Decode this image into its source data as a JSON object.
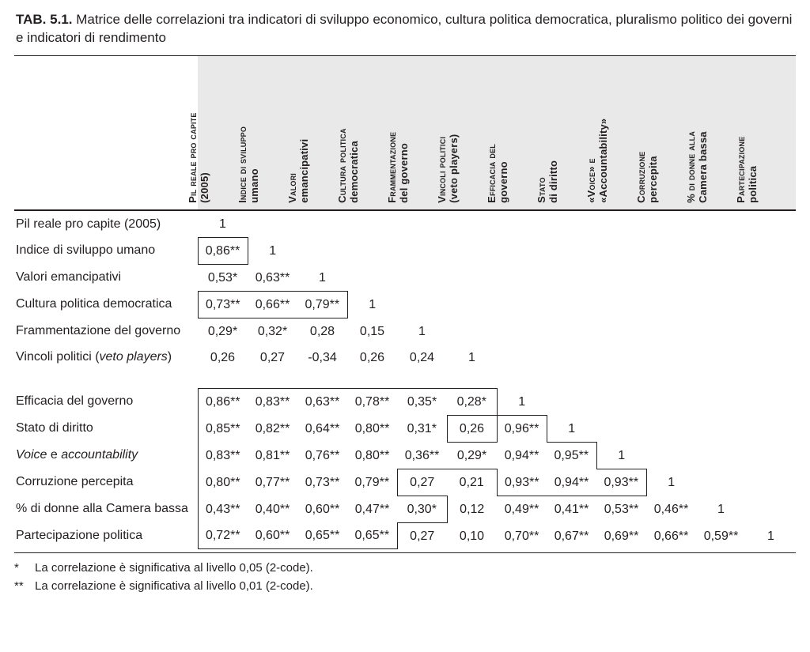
{
  "caption": {
    "lead": "TAB. 5.1.",
    "text": "Matrice delle correlazioni tra indicatori di sviluppo economico, cultura politica democratica, pluralismo politico dei governi e indicatori di rendimento"
  },
  "columns": [
    {
      "id": "c1",
      "line1": "Pil reale pro capite",
      "line2": "(2005)"
    },
    {
      "id": "c2",
      "line1": "Indice di sviluppo",
      "line2": "umano"
    },
    {
      "id": "c3",
      "line1": "Valori",
      "line2": "emancipativi"
    },
    {
      "id": "c4",
      "line1": "Cultura politica",
      "line2": "democratica"
    },
    {
      "id": "c5",
      "line1": "Frammentazione",
      "line2": "del governo"
    },
    {
      "id": "c6",
      "line1": "Vincoli politici",
      "line2": "(veto players)"
    },
    {
      "id": "c7",
      "line1": "Efficacia del",
      "line2": "governo"
    },
    {
      "id": "c8",
      "line1": "Stato",
      "line2": "di diritto"
    },
    {
      "id": "c9",
      "line1": "«Voice» e",
      "line2": "«Accountability»"
    },
    {
      "id": "c10",
      "line1": "Corruzione",
      "line2": "percepita"
    },
    {
      "id": "c11",
      "line1": "% di donne alla",
      "line2": "Camera bassa"
    },
    {
      "id": "c12",
      "line1": "Partecipazione",
      "line2": "politica"
    }
  ],
  "rows": [
    {
      "label": "Pil reale pro capite (2005)",
      "cells": [
        "1"
      ]
    },
    {
      "label": "Indice di sviluppo umano",
      "cells": [
        "0,86**",
        "1"
      ]
    },
    {
      "label": "Valori emancipativi",
      "cells": [
        "0,53*",
        "0,63**",
        "1"
      ]
    },
    {
      "label": "Cultura politica democratica",
      "cells": [
        "0,73**",
        "0,66**",
        "0,79**",
        "1"
      ]
    },
    {
      "label": "Frammentazione del governo",
      "cells": [
        "0,29*",
        "0,32*",
        "0,28",
        "0,15",
        "1"
      ]
    },
    {
      "label_html": "Vincoli politici (<i>veto players</i>)",
      "label": "Vincoli politici (veto players)",
      "cells": [
        "0,26",
        "0,27",
        "-0,34",
        "0,26",
        "0,24",
        "1"
      ]
    },
    {
      "gap": true
    },
    {
      "label": "Efficacia del governo",
      "cells": [
        "0,86**",
        "0,83**",
        "0,63**",
        "0,78**",
        "0,35*",
        "0,28*",
        "1"
      ]
    },
    {
      "label": "Stato di diritto",
      "cells": [
        "0,85**",
        "0,82**",
        "0,64**",
        "0,80**",
        "0,31*",
        "0,26",
        "0,96**",
        "1"
      ]
    },
    {
      "label_html": "<i>Voice</i> e <i>accountability</i>",
      "label": "Voice e accountability",
      "cells": [
        "0,83**",
        "0,81**",
        "0,76**",
        "0,80**",
        "0,36**",
        "0,29*",
        "0,94**",
        "0,95**",
        "1"
      ]
    },
    {
      "label": "Corruzione percepita",
      "cells": [
        "0,80**",
        "0,77**",
        "0,73**",
        "0,79**",
        "0,27",
        "0,21",
        "0,93**",
        "0,94**",
        "0,93**",
        "1"
      ]
    },
    {
      "label": "% di donne alla Camera bassa",
      "cells": [
        "0,43**",
        "0,40**",
        "0,60**",
        "0,47**",
        "0,30*",
        "0,12",
        "0,49**",
        "0,41**",
        "0,53**",
        "0,46**",
        "1"
      ]
    },
    {
      "label": "Partecipazione politica",
      "cells": [
        "0,72**",
        "0,60**",
        "0,65**",
        "0,65**",
        "0,27",
        "0,10",
        "0,70**",
        "0,67**",
        "0,69**",
        "0,66**",
        "0,59**",
        "1"
      ]
    }
  ],
  "boxed_cells": [
    [
      1,
      0
    ],
    [
      3,
      0
    ],
    [
      3,
      1
    ],
    [
      3,
      2
    ],
    [
      7,
      0
    ],
    [
      7,
      1
    ],
    [
      7,
      2
    ],
    [
      7,
      3
    ],
    [
      7,
      4
    ],
    [
      7,
      5
    ],
    [
      8,
      0
    ],
    [
      8,
      1
    ],
    [
      8,
      2
    ],
    [
      8,
      3
    ],
    [
      8,
      4
    ],
    [
      8,
      6
    ],
    [
      9,
      0
    ],
    [
      9,
      1
    ],
    [
      9,
      2
    ],
    [
      9,
      3
    ],
    [
      9,
      4
    ],
    [
      9,
      5
    ],
    [
      9,
      6
    ],
    [
      9,
      7
    ],
    [
      10,
      0
    ],
    [
      10,
      1
    ],
    [
      10,
      2
    ],
    [
      10,
      3
    ],
    [
      10,
      6
    ],
    [
      10,
      7
    ],
    [
      10,
      8
    ],
    [
      11,
      0
    ],
    [
      11,
      1
    ],
    [
      11,
      2
    ],
    [
      11,
      3
    ],
    [
      11,
      4
    ],
    [
      12,
      0
    ],
    [
      12,
      1
    ],
    [
      12,
      2
    ],
    [
      12,
      3
    ]
  ],
  "footnotes": [
    {
      "mark": "*",
      "text": "La correlazione è significativa al livello 0,05 (2-code)."
    },
    {
      "mark": "**",
      "text": "La correlazione è significativa al livello 0,01 (2-code)."
    }
  ],
  "style": {
    "header_bg": "#e9e9e9",
    "line_color": "#231f20",
    "text_color": "#231f20",
    "font_size_body": 16,
    "font_size_header": 13,
    "font_size_caption": 17,
    "font_size_footnote": 15
  }
}
